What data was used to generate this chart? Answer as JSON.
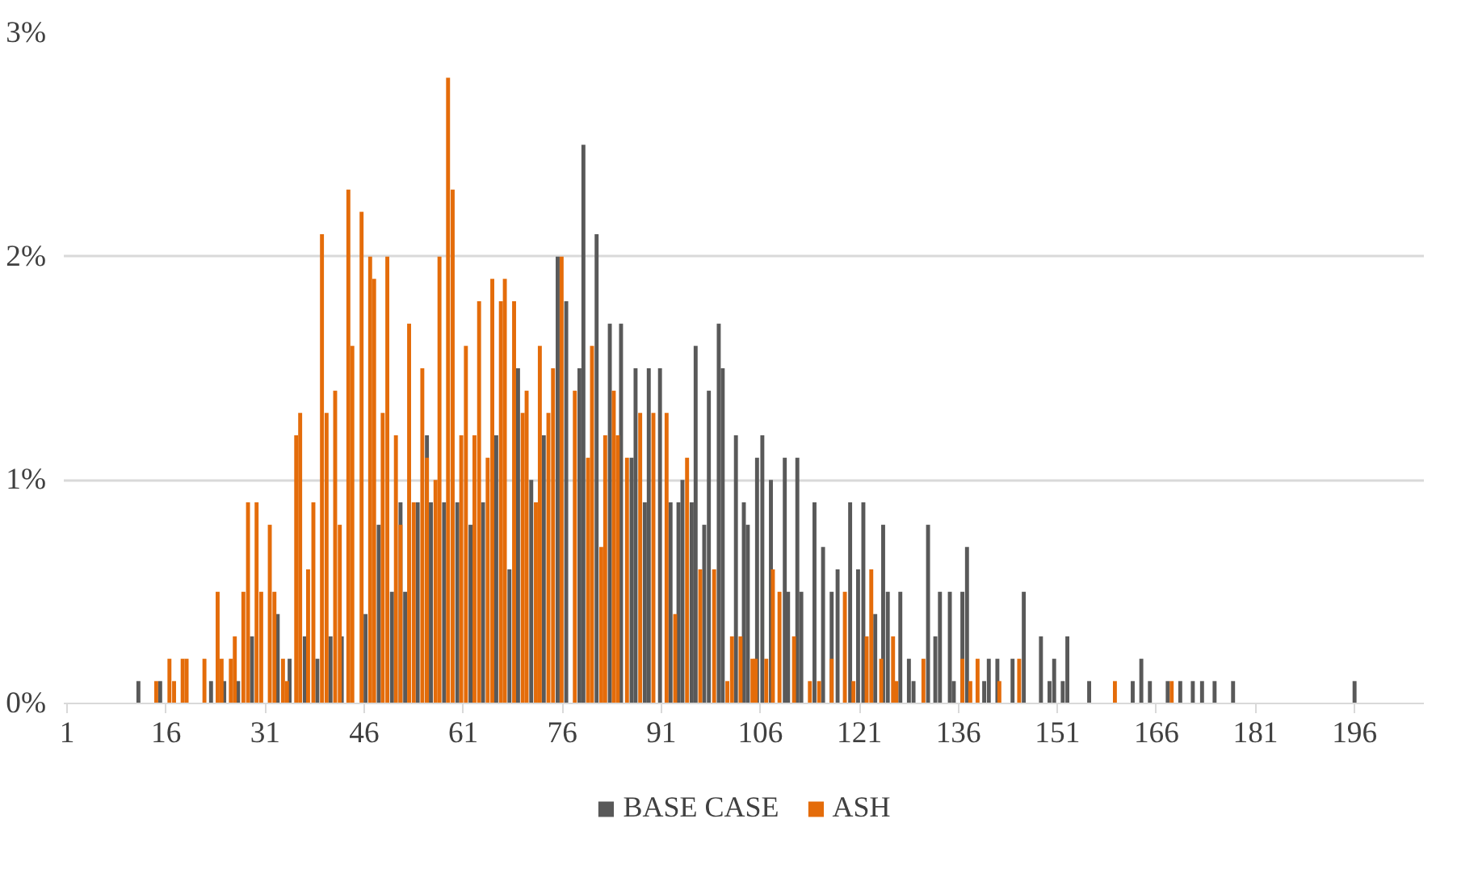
{
  "chart_data": {
    "type": "bar",
    "grid": "y",
    "legend": "bottom",
    "xlim": [
      0.5,
      206.5
    ],
    "xticks": [
      1,
      16,
      31,
      46,
      61,
      76,
      91,
      106,
      121,
      136,
      151,
      166,
      181,
      196
    ],
    "ylim": [
      0,
      3
    ],
    "yticks": [
      {
        "value": 0,
        "label": "0%"
      },
      {
        "value": 1,
        "label": "1%"
      },
      {
        "value": 2,
        "label": "2%"
      },
      {
        "value": 3,
        "label": "3%"
      }
    ],
    "series": [
      {
        "name": "BASE CASE",
        "color": "#595959",
        "x": [
          11.8,
          15.1,
          22.8,
          24.8,
          26.9,
          29.0,
          32.9,
          34.7,
          37.0,
          38.9,
          40.9,
          42.6,
          46.2,
          48.2,
          50.2,
          51.5,
          52.2,
          54.1,
          55.5,
          56.1,
          58.1,
          60.1,
          62.1,
          64.0,
          66.0,
          68.0,
          69.3,
          71.3,
          73.2,
          75.3,
          76.6,
          78.6,
          79.2,
          81.2,
          83.2,
          84.9,
          86.5,
          87.1,
          88.5,
          89.1,
          90.8,
          92.4,
          93.6,
          94.2,
          95.6,
          96.2,
          97.5,
          98.2,
          99.7,
          100.3,
          102.3,
          103.5,
          104.1,
          105.5,
          106.3,
          107.6,
          109.7,
          110.2,
          111.6,
          112.2,
          114.2,
          115.5,
          116.8,
          117.7,
          119.6,
          120.8,
          121.6,
          123.4,
          124.6,
          125.3,
          127.2,
          128.5,
          129.2,
          131.4,
          132.5,
          133.2,
          134.7,
          135.3,
          136.6,
          137.3,
          139.9,
          140.6,
          141.9,
          144.2,
          145.9,
          148.5,
          149.8,
          150.5,
          151.8,
          152.5,
          155.8,
          162.4,
          163.7,
          165.0,
          167.7,
          169.6,
          171.5,
          172.9,
          174.8,
          177.6,
          196.0
        ],
        "values": [
          0.1,
          0.1,
          0.1,
          0.1,
          0.1,
          0.3,
          0.4,
          0.2,
          0.3,
          0.2,
          0.3,
          0.3,
          0.4,
          0.8,
          0.5,
          0.9,
          0.5,
          0.9,
          1.2,
          0.9,
          0.9,
          0.9,
          0.8,
          0.9,
          1.2,
          0.6,
          1.5,
          1.0,
          1.2,
          2.0,
          1.8,
          1.5,
          2.5,
          2.1,
          1.7,
          1.7,
          1.1,
          1.5,
          0.9,
          1.5,
          1.5,
          0.9,
          0.9,
          1.0,
          0.9,
          1.6,
          0.8,
          1.4,
          1.7,
          1.5,
          1.2,
          0.9,
          0.8,
          1.1,
          1.2,
          1.0,
          1.1,
          0.5,
          1.1,
          0.5,
          0.9,
          0.7,
          0.5,
          0.6,
          0.9,
          0.6,
          0.9,
          0.4,
          0.8,
          0.5,
          0.5,
          0.2,
          0.1,
          0.8,
          0.3,
          0.5,
          0.5,
          0.1,
          0.5,
          0.7,
          0.1,
          0.2,
          0.2,
          0.2,
          0.5,
          0.3,
          0.1,
          0.2,
          0.1,
          0.3,
          0.1,
          0.1,
          0.2,
          0.1,
          0.1,
          0.1,
          0.1,
          0.1,
          0.1,
          0.1,
          0.1
        ]
      },
      {
        "name": "ASH",
        "color": "#e46c0a",
        "x": [
          14.5,
          16.5,
          17.2,
          18.5,
          19.1,
          21.8,
          23.8,
          24.4,
          25.8,
          26.4,
          27.7,
          28.4,
          29.7,
          30.4,
          31.7,
          32.4,
          33.7,
          34.3,
          35.7,
          36.3,
          37.5,
          38.3,
          39.6,
          40.3,
          41.6,
          42.3,
          43.6,
          44.2,
          45.6,
          46.9,
          47.5,
          48.8,
          49.5,
          50.8,
          51.5,
          52.8,
          53.5,
          54.8,
          55.5,
          56.8,
          57.4,
          58.7,
          59.4,
          60.7,
          61.4,
          62.7,
          63.4,
          64.7,
          65.4,
          66.7,
          67.3,
          68.7,
          70.0,
          70.6,
          72.0,
          72.6,
          73.9,
          74.6,
          75.9,
          77.9,
          79.9,
          80.5,
          81.9,
          82.5,
          83.8,
          84.4,
          85.8,
          87.8,
          89.8,
          91.8,
          93.1,
          94.9,
          96.9,
          99.0,
          101.0,
          101.7,
          103.0,
          104.8,
          105.3,
          106.9,
          107.9,
          108.9,
          111.1,
          113.5,
          114.9,
          116.8,
          118.8,
          120.1,
          122.1,
          122.8,
          124.3,
          126.1,
          126.6,
          130.7,
          136.6,
          137.8,
          138.9,
          142.2,
          145.2,
          159.7,
          168.3
        ],
        "values": [
          0.1,
          0.2,
          0.1,
          0.2,
          0.2,
          0.2,
          0.5,
          0.2,
          0.2,
          0.3,
          0.5,
          0.9,
          0.9,
          0.5,
          0.8,
          0.5,
          0.2,
          0.1,
          1.2,
          1.3,
          0.6,
          0.9,
          2.1,
          1.3,
          1.4,
          0.8,
          2.3,
          1.6,
          2.2,
          2.0,
          1.9,
          1.3,
          2.0,
          1.2,
          0.8,
          1.7,
          0.9,
          1.5,
          1.1,
          1.0,
          2.0,
          2.8,
          2.3,
          1.2,
          1.6,
          1.2,
          1.8,
          1.1,
          1.9,
          1.8,
          1.9,
          1.8,
          1.3,
          1.4,
          0.9,
          1.6,
          1.3,
          1.5,
          2.0,
          1.4,
          1.1,
          1.6,
          0.7,
          1.2,
          1.4,
          1.2,
          1.1,
          1.3,
          1.3,
          1.3,
          0.4,
          1.1,
          0.6,
          0.6,
          0.1,
          0.3,
          0.3,
          0.2,
          0.2,
          0.2,
          0.6,
          0.5,
          0.3,
          0.1,
          0.1,
          0.2,
          0.5,
          0.1,
          0.3,
          0.6,
          0.2,
          0.3,
          0.1,
          0.2,
          0.2,
          0.1,
          0.2,
          0.1,
          0.2,
          0.1,
          0.1
        ]
      }
    ]
  }
}
